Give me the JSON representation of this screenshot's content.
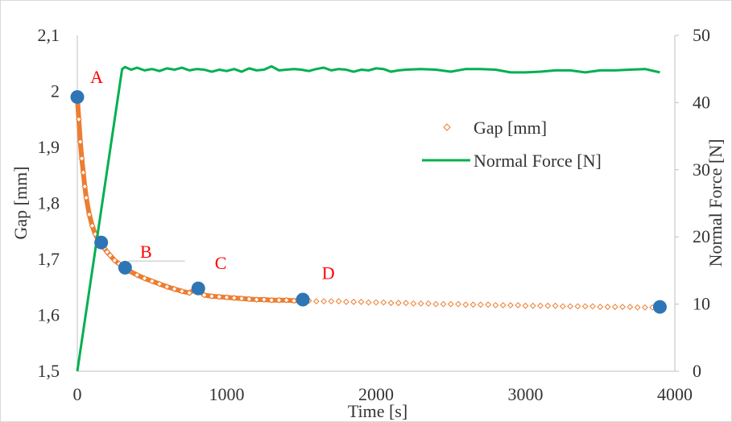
{
  "chart_data": {
    "type": "scatter",
    "xlabel": "Time [s]",
    "ylabel": "Gap [mm]",
    "y2label": "Normal Force [N]",
    "xlim": [
      0,
      4000
    ],
    "ylim": [
      1.5,
      2.1
    ],
    "y2lim": [
      0,
      50
    ],
    "x_ticks": [
      0,
      1000,
      2000,
      3000,
      4000
    ],
    "x_tick_labels": [
      "0",
      "1000",
      "2000",
      "3000",
      "4000"
    ],
    "y_ticks": [
      1.5,
      1.6,
      1.7,
      1.8,
      1.9,
      2.0,
      2.1
    ],
    "y_tick_labels": [
      "1,5",
      "1,6",
      "1,7",
      "1,8",
      "1,9",
      "2",
      "2,1"
    ],
    "y2_ticks": [
      0,
      10,
      20,
      30,
      40,
      50
    ],
    "y2_tick_labels": [
      "0",
      "10",
      "20",
      "30",
      "40",
      "50"
    ],
    "grid": false,
    "legend_position": "right-middle",
    "series": [
      {
        "name": "Gap [mm]",
        "marker": "diamond",
        "color": "#ed7d31",
        "axis": "left",
        "x": [
          0,
          10,
          20,
          30,
          40,
          50,
          60,
          80,
          100,
          120,
          140,
          160,
          180,
          200,
          220,
          250,
          280,
          310,
          350,
          400,
          450,
          500,
          550,
          600,
          650,
          700,
          750,
          800,
          850,
          900,
          950,
          1000,
          1050,
          1100,
          1150,
          1200,
          1250,
          1300,
          1350,
          1400,
          1450,
          1500,
          1550,
          1600,
          1650,
          1700,
          1750,
          1800,
          1850,
          1900,
          1950,
          2000,
          2050,
          2100,
          2150,
          2200,
          2250,
          2300,
          2350,
          2400,
          2450,
          2500,
          2550,
          2600,
          2650,
          2700,
          2750,
          2800,
          2850,
          2900,
          2950,
          3000,
          3050,
          3100,
          3150,
          3200,
          3250,
          3300,
          3350,
          3400,
          3450,
          3500,
          3550,
          3600,
          3650,
          3700,
          3750,
          3800,
          3850,
          3900
        ],
        "y": [
          1.99,
          1.95,
          1.91,
          1.88,
          1.855,
          1.83,
          1.81,
          1.78,
          1.76,
          1.745,
          1.735,
          1.728,
          1.72,
          1.713,
          1.707,
          1.698,
          1.692,
          1.685,
          1.679,
          1.672,
          1.666,
          1.661,
          1.656,
          1.651,
          1.647,
          1.643,
          1.64,
          1.648,
          1.636,
          1.634,
          1.633,
          1.632,
          1.631,
          1.63,
          1.629,
          1.628,
          1.628,
          1.627,
          1.627,
          1.627,
          1.626,
          1.626,
          1.626,
          1.625,
          1.625,
          1.625,
          1.625,
          1.624,
          1.624,
          1.624,
          1.623,
          1.623,
          1.623,
          1.622,
          1.622,
          1.622,
          1.621,
          1.621,
          1.621,
          1.62,
          1.62,
          1.62,
          1.62,
          1.619,
          1.619,
          1.619,
          1.619,
          1.618,
          1.618,
          1.618,
          1.618,
          1.617,
          1.617,
          1.617,
          1.617,
          1.617,
          1.616,
          1.616,
          1.616,
          1.616,
          1.616,
          1.615,
          1.615,
          1.615,
          1.615,
          1.615,
          1.614,
          1.614,
          1.614,
          1.614
        ]
      },
      {
        "name": "Normal Force [N]",
        "marker": "line",
        "color": "#00b050",
        "axis": "right",
        "x": [
          0,
          300,
          320,
          360,
          400,
          450,
          500,
          550,
          600,
          650,
          700,
          750,
          800,
          850,
          900,
          950,
          1000,
          1050,
          1100,
          1150,
          1200,
          1250,
          1300,
          1350,
          1400,
          1450,
          1500,
          1550,
          1600,
          1650,
          1700,
          1750,
          1800,
          1850,
          1900,
          1950,
          2000,
          2050,
          2100,
          2150,
          2200,
          2300,
          2400,
          2500,
          2600,
          2700,
          2800,
          2900,
          3000,
          3100,
          3200,
          3300,
          3400,
          3500,
          3600,
          3700,
          3800,
          3900
        ],
        "y": [
          0,
          45,
          45.3,
          44.9,
          45.2,
          44.8,
          45.0,
          44.7,
          45.1,
          44.9,
          45.2,
          44.8,
          45.0,
          44.9,
          44.6,
          44.9,
          44.7,
          45.0,
          44.6,
          45.1,
          44.8,
          44.9,
          45.4,
          44.8,
          44.9,
          45.0,
          44.9,
          44.7,
          45.0,
          45.2,
          44.8,
          45.0,
          44.9,
          44.6,
          44.9,
          44.8,
          45.1,
          45.0,
          44.6,
          44.8,
          44.9,
          45.0,
          44.9,
          44.6,
          45.0,
          45.0,
          44.9,
          44.5,
          44.5,
          44.6,
          44.8,
          44.8,
          44.5,
          44.8,
          44.8,
          44.9,
          45.0,
          44.5
        ]
      }
    ],
    "highlight_points": {
      "color": "#2e75b6",
      "x": [
        0,
        160,
        320,
        810,
        1510,
        3900
      ],
      "y": [
        1.99,
        1.73,
        1.685,
        1.648,
        1.628,
        1.615
      ]
    },
    "annotations": [
      {
        "text": "A",
        "x": 130,
        "y": 2.015
      },
      {
        "text": "B",
        "x": 460,
        "y": 1.703
      },
      {
        "text": "C",
        "x": 960,
        "y": 1.683
      },
      {
        "text": "D",
        "x": 1680,
        "y": 1.665
      }
    ],
    "reference_segment": {
      "x1": 340,
      "x2": 720,
      "y": 1.697
    }
  }
}
